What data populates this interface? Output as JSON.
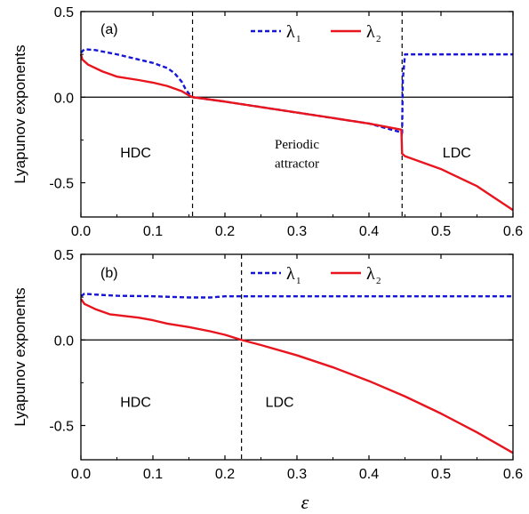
{
  "figure": {
    "shared_xlabel": "ε"
  },
  "chart_data": [
    {
      "type": "line",
      "panel_label": "(a)",
      "ylabel": "Lyapunov exponents",
      "xlim": [
        0.0,
        0.6
      ],
      "ylim": [
        -0.7,
        0.5
      ],
      "x_ticks": [
        "0.0",
        "0.1",
        "0.2",
        "0.3",
        "0.4",
        "0.5",
        "0.6"
      ],
      "y_ticks": [
        "-0.5",
        "0.0",
        "0.5"
      ],
      "legend_placement": "top-center",
      "series": [
        {
          "name": "λ1",
          "label_main": "λ",
          "label_sub": "1",
          "color": "#1515d6",
          "style": "dashed",
          "x": [
            0.0,
            0.005,
            0.02,
            0.05,
            0.08,
            0.1,
            0.12,
            0.13,
            0.14,
            0.145,
            0.15,
            0.155,
            0.2,
            0.25,
            0.3,
            0.35,
            0.4,
            0.44,
            0.446,
            0.447,
            0.45,
            0.5,
            0.55,
            0.6
          ],
          "y": [
            0.26,
            0.28,
            0.275,
            0.25,
            0.22,
            0.2,
            0.17,
            0.14,
            0.09,
            0.05,
            0.02,
            0.0,
            -0.026,
            -0.058,
            -0.09,
            -0.122,
            -0.154,
            -0.2,
            -0.21,
            0.1,
            0.25,
            0.25,
            0.25,
            0.25
          ]
        },
        {
          "name": "λ2",
          "label_main": "λ",
          "label_sub": "2",
          "color": "#e8141e",
          "style": "solid",
          "x": [
            0.0,
            0.002,
            0.01,
            0.03,
            0.05,
            0.08,
            0.1,
            0.12,
            0.14,
            0.15,
            0.155,
            0.2,
            0.25,
            0.3,
            0.35,
            0.4,
            0.445,
            0.446,
            0.45,
            0.5,
            0.55,
            0.6
          ],
          "y": [
            0.25,
            0.22,
            0.19,
            0.15,
            0.12,
            0.1,
            0.085,
            0.065,
            0.035,
            0.01,
            0.0,
            -0.026,
            -0.058,
            -0.09,
            -0.122,
            -0.154,
            -0.19,
            -0.33,
            -0.345,
            -0.42,
            -0.52,
            -0.66
          ]
        }
      ],
      "reference_lines": {
        "horizontal_y": 0.0,
        "vertical_x": [
          0.155,
          0.446
        ]
      },
      "region_labels": [
        {
          "text": "HDC",
          "x": 0.076,
          "y": -0.32,
          "font": "sans"
        },
        {
          "text": "Periodic",
          "x": 0.3,
          "y": -0.27,
          "font": "serif"
        },
        {
          "text": "attractor",
          "x": 0.3,
          "y": -0.38,
          "font": "serif"
        },
        {
          "text": "LDC",
          "x": 0.522,
          "y": -0.32,
          "font": "sans"
        }
      ]
    },
    {
      "type": "line",
      "panel_label": "(b)",
      "ylabel": "Lyapunov exponents",
      "xlim": [
        0.0,
        0.6
      ],
      "ylim": [
        -0.7,
        0.5
      ],
      "x_ticks": [
        "0.0",
        "0.1",
        "0.2",
        "0.3",
        "0.4",
        "0.5",
        "0.6"
      ],
      "y_ticks": [
        "-0.5",
        "0.0",
        "0.5"
      ],
      "legend_placement": "top-right",
      "series": [
        {
          "name": "λ1",
          "label_main": "λ",
          "label_sub": "1",
          "color": "#1515d6",
          "style": "dashed",
          "x": [
            0.0,
            0.005,
            0.02,
            0.05,
            0.1,
            0.15,
            0.18,
            0.2,
            0.25,
            0.3,
            0.4,
            0.5,
            0.6
          ],
          "y": [
            0.255,
            0.27,
            0.265,
            0.258,
            0.255,
            0.248,
            0.248,
            0.255,
            0.255,
            0.255,
            0.255,
            0.255,
            0.255
          ]
        },
        {
          "name": "λ2",
          "label_main": "λ",
          "label_sub": "2",
          "color": "#e8141e",
          "style": "solid",
          "x": [
            0.0,
            0.005,
            0.02,
            0.04,
            0.06,
            0.08,
            0.1,
            0.12,
            0.15,
            0.18,
            0.2,
            0.223,
            0.25,
            0.3,
            0.35,
            0.4,
            0.45,
            0.5,
            0.55,
            0.6
          ],
          "y": [
            0.24,
            0.21,
            0.18,
            0.15,
            0.14,
            0.13,
            0.115,
            0.095,
            0.075,
            0.05,
            0.03,
            0.0,
            -0.03,
            -0.09,
            -0.16,
            -0.24,
            -0.33,
            -0.43,
            -0.54,
            -0.66
          ]
        }
      ],
      "reference_lines": {
        "horizontal_y": 0.0,
        "vertical_x": [
          0.223
        ]
      },
      "region_labels": [
        {
          "text": "HDC",
          "x": 0.076,
          "y": -0.36,
          "font": "sans"
        },
        {
          "text": "LDC",
          "x": 0.276,
          "y": -0.36,
          "font": "sans"
        }
      ]
    }
  ]
}
